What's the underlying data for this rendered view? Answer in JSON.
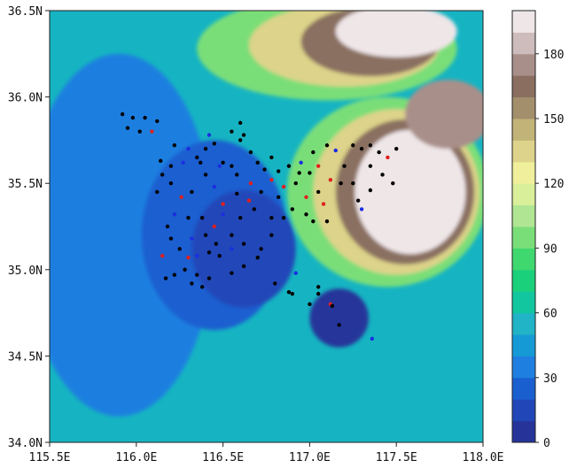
{
  "chart_data": {
    "type": "heatmap",
    "title": "",
    "xlabel": "",
    "ylabel": "",
    "xlim": [
      115.5,
      118.0
    ],
    "ylim": [
      34.0,
      36.5
    ],
    "x_ticks": [
      115.5,
      116.0,
      116.5,
      117.0,
      117.5,
      118.0
    ],
    "x_tick_labels": [
      "115.5E",
      "116.0E",
      "116.5E",
      "117.0E",
      "117.5E",
      "118.0E"
    ],
    "y_ticks": [
      34.0,
      34.5,
      35.0,
      35.5,
      36.0,
      36.5
    ],
    "y_tick_labels": [
      "34.0N",
      "34.5N",
      "35.0N",
      "35.5N",
      "36.0N",
      "36.5N"
    ],
    "colorbar": {
      "min": 0,
      "max": 200,
      "step": 10,
      "ticks": [
        0,
        30,
        60,
        90,
        120,
        150,
        180
      ],
      "tick_labels": [
        "0",
        "30",
        "60",
        "90",
        "120",
        "150",
        "180"
      ],
      "colors": [
        "#26349a",
        "#2046b8",
        "#1a5fd0",
        "#1f7fe0",
        "#159ad6",
        "#21b3c6",
        "#12c79f",
        "#1bd07b",
        "#3fd86f",
        "#7ade78",
        "#b0e693",
        "#d9ef9a",
        "#f0ef9c",
        "#ddd38a",
        "#c2b378",
        "#a38f6c",
        "#8a6f60",
        "#a98f8a",
        "#cdbcbb",
        "#efe6e8"
      ]
    },
    "regions": [
      {
        "x": 115.9,
        "y": 35.2,
        "rx": 0.55,
        "ry": 1.05,
        "level": 30
      },
      {
        "x": 116.45,
        "y": 35.2,
        "rx": 0.42,
        "ry": 0.55,
        "level": 20
      },
      {
        "x": 116.62,
        "y": 35.12,
        "rx": 0.3,
        "ry": 0.34,
        "level": 10
      },
      {
        "x": 117.17,
        "y": 34.72,
        "rx": 0.17,
        "ry": 0.17,
        "level": 0
      },
      {
        "x": 117.1,
        "y": 36.28,
        "rx": 0.75,
        "ry": 0.3,
        "level": 90
      },
      {
        "x": 117.2,
        "y": 36.3,
        "rx": 0.55,
        "ry": 0.24,
        "level": 130
      },
      {
        "x": 117.35,
        "y": 36.32,
        "rx": 0.4,
        "ry": 0.2,
        "level": 160
      },
      {
        "x": 117.5,
        "y": 36.38,
        "rx": 0.35,
        "ry": 0.15,
        "level": 190
      },
      {
        "x": 117.45,
        "y": 35.45,
        "rx": 0.58,
        "ry": 0.55,
        "level": 90
      },
      {
        "x": 117.5,
        "y": 35.45,
        "rx": 0.48,
        "ry": 0.48,
        "level": 130
      },
      {
        "x": 117.55,
        "y": 35.45,
        "rx": 0.4,
        "ry": 0.42,
        "level": 160
      },
      {
        "x": 117.58,
        "y": 35.45,
        "rx": 0.32,
        "ry": 0.36,
        "level": 190
      },
      {
        "x": 117.8,
        "y": 35.9,
        "rx": 0.25,
        "ry": 0.2,
        "level": 170
      }
    ],
    "stations": [
      {
        "x": 115.92,
        "y": 35.9,
        "c": "k"
      },
      {
        "x": 115.98,
        "y": 35.88,
        "c": "k"
      },
      {
        "x": 116.05,
        "y": 35.88,
        "c": "k"
      },
      {
        "x": 115.95,
        "y": 35.82,
        "c": "k"
      },
      {
        "x": 116.02,
        "y": 35.8,
        "c": "k"
      },
      {
        "x": 116.09,
        "y": 35.8,
        "c": "r"
      },
      {
        "x": 116.12,
        "y": 35.86,
        "c": "k"
      },
      {
        "x": 116.22,
        "y": 35.72,
        "c": "k"
      },
      {
        "x": 116.3,
        "y": 35.7,
        "c": "b"
      },
      {
        "x": 116.14,
        "y": 35.63,
        "c": "k"
      },
      {
        "x": 116.2,
        "y": 35.6,
        "c": "k"
      },
      {
        "x": 116.27,
        "y": 35.62,
        "c": "b"
      },
      {
        "x": 116.35,
        "y": 35.65,
        "c": "k"
      },
      {
        "x": 116.4,
        "y": 35.7,
        "c": "k"
      },
      {
        "x": 116.45,
        "y": 35.73,
        "c": "k"
      },
      {
        "x": 116.55,
        "y": 35.8,
        "c": "k"
      },
      {
        "x": 116.6,
        "y": 35.85,
        "c": "k"
      },
      {
        "x": 116.62,
        "y": 35.78,
        "c": "k"
      },
      {
        "x": 116.5,
        "y": 35.62,
        "c": "k"
      },
      {
        "x": 116.58,
        "y": 35.55,
        "c": "k"
      },
      {
        "x": 116.66,
        "y": 35.68,
        "c": "k"
      },
      {
        "x": 116.7,
        "y": 35.62,
        "c": "k"
      },
      {
        "x": 116.78,
        "y": 35.65,
        "c": "k"
      },
      {
        "x": 116.82,
        "y": 35.57,
        "c": "k"
      },
      {
        "x": 116.88,
        "y": 35.6,
        "c": "k"
      },
      {
        "x": 116.95,
        "y": 35.62,
        "c": "b"
      },
      {
        "x": 117.02,
        "y": 35.68,
        "c": "k"
      },
      {
        "x": 117.05,
        "y": 35.6,
        "c": "r"
      },
      {
        "x": 117.1,
        "y": 35.72,
        "c": "k"
      },
      {
        "x": 117.15,
        "y": 35.69,
        "c": "b"
      },
      {
        "x": 117.2,
        "y": 35.6,
        "c": "k"
      },
      {
        "x": 117.25,
        "y": 35.72,
        "c": "k"
      },
      {
        "x": 117.3,
        "y": 35.7,
        "c": "k"
      },
      {
        "x": 117.35,
        "y": 35.72,
        "c": "k"
      },
      {
        "x": 117.4,
        "y": 35.68,
        "c": "k"
      },
      {
        "x": 117.45,
        "y": 35.65,
        "c": "r"
      },
      {
        "x": 117.5,
        "y": 35.7,
        "c": "k"
      },
      {
        "x": 117.42,
        "y": 35.55,
        "c": "k"
      },
      {
        "x": 117.48,
        "y": 35.5,
        "c": "k"
      },
      {
        "x": 117.35,
        "y": 35.46,
        "c": "k"
      },
      {
        "x": 117.28,
        "y": 35.4,
        "c": "k"
      },
      {
        "x": 117.3,
        "y": 35.35,
        "c": "b"
      },
      {
        "x": 117.18,
        "y": 35.5,
        "c": "k"
      },
      {
        "x": 117.12,
        "y": 35.52,
        "c": "r"
      },
      {
        "x": 117.05,
        "y": 35.45,
        "c": "k"
      },
      {
        "x": 116.98,
        "y": 35.42,
        "c": "r"
      },
      {
        "x": 116.92,
        "y": 35.5,
        "c": "k"
      },
      {
        "x": 116.85,
        "y": 35.48,
        "c": "r"
      },
      {
        "x": 116.78,
        "y": 35.52,
        "c": "r"
      },
      {
        "x": 116.72,
        "y": 35.45,
        "c": "k"
      },
      {
        "x": 116.65,
        "y": 35.4,
        "c": "r"
      },
      {
        "x": 116.58,
        "y": 35.44,
        "c": "k"
      },
      {
        "x": 116.5,
        "y": 35.38,
        "c": "r"
      },
      {
        "x": 116.45,
        "y": 35.48,
        "c": "b"
      },
      {
        "x": 116.4,
        "y": 35.55,
        "c": "k"
      },
      {
        "x": 116.32,
        "y": 35.45,
        "c": "k"
      },
      {
        "x": 116.26,
        "y": 35.42,
        "c": "r"
      },
      {
        "x": 116.2,
        "y": 35.5,
        "c": "k"
      },
      {
        "x": 116.15,
        "y": 35.55,
        "c": "k"
      },
      {
        "x": 116.12,
        "y": 35.45,
        "c": "k"
      },
      {
        "x": 116.22,
        "y": 35.32,
        "c": "b"
      },
      {
        "x": 116.3,
        "y": 35.3,
        "c": "k"
      },
      {
        "x": 116.38,
        "y": 35.3,
        "c": "k"
      },
      {
        "x": 116.45,
        "y": 35.25,
        "c": "r"
      },
      {
        "x": 116.5,
        "y": 35.32,
        "c": "b"
      },
      {
        "x": 116.6,
        "y": 35.3,
        "c": "k"
      },
      {
        "x": 116.68,
        "y": 35.35,
        "c": "k"
      },
      {
        "x": 116.78,
        "y": 35.3,
        "c": "k"
      },
      {
        "x": 116.85,
        "y": 35.3,
        "c": "k"
      },
      {
        "x": 116.9,
        "y": 35.35,
        "c": "k"
      },
      {
        "x": 116.98,
        "y": 35.32,
        "c": "k"
      },
      {
        "x": 117.02,
        "y": 35.28,
        "c": "k"
      },
      {
        "x": 117.08,
        "y": 35.38,
        "c": "r"
      },
      {
        "x": 116.78,
        "y": 35.2,
        "c": "k"
      },
      {
        "x": 116.72,
        "y": 35.12,
        "c": "k"
      },
      {
        "x": 116.62,
        "y": 35.15,
        "c": "k"
      },
      {
        "x": 116.55,
        "y": 35.12,
        "c": "b"
      },
      {
        "x": 116.48,
        "y": 35.08,
        "c": "k"
      },
      {
        "x": 116.42,
        "y": 35.1,
        "c": "k"
      },
      {
        "x": 116.35,
        "y": 35.08,
        "c": "b"
      },
      {
        "x": 116.3,
        "y": 35.07,
        "c": "r"
      },
      {
        "x": 116.25,
        "y": 35.12,
        "c": "k"
      },
      {
        "x": 116.15,
        "y": 35.08,
        "c": "r"
      },
      {
        "x": 116.2,
        "y": 35.18,
        "c": "k"
      },
      {
        "x": 116.32,
        "y": 35.18,
        "c": "b"
      },
      {
        "x": 116.4,
        "y": 35.2,
        "c": "k"
      },
      {
        "x": 116.28,
        "y": 35.0,
        "c": "k"
      },
      {
        "x": 116.35,
        "y": 34.97,
        "c": "k"
      },
      {
        "x": 116.42,
        "y": 34.95,
        "c": "k"
      },
      {
        "x": 116.55,
        "y": 34.98,
        "c": "k"
      },
      {
        "x": 116.62,
        "y": 35.02,
        "c": "k"
      },
      {
        "x": 116.7,
        "y": 35.07,
        "c": "k"
      },
      {
        "x": 116.22,
        "y": 34.97,
        "c": "k"
      },
      {
        "x": 116.17,
        "y": 34.95,
        "c": "k"
      },
      {
        "x": 116.38,
        "y": 34.9,
        "c": "k"
      },
      {
        "x": 116.32,
        "y": 34.92,
        "c": "k"
      },
      {
        "x": 116.8,
        "y": 34.92,
        "c": "k"
      },
      {
        "x": 116.88,
        "y": 34.87,
        "c": "k"
      },
      {
        "x": 116.9,
        "y": 34.86,
        "c": "k"
      },
      {
        "x": 116.92,
        "y": 34.98,
        "c": "b"
      },
      {
        "x": 117.0,
        "y": 34.8,
        "c": "k"
      },
      {
        "x": 117.05,
        "y": 34.9,
        "c": "k"
      },
      {
        "x": 117.05,
        "y": 34.86,
        "c": "k"
      },
      {
        "x": 117.12,
        "y": 34.8,
        "c": "r"
      },
      {
        "x": 117.13,
        "y": 34.79,
        "c": "k"
      },
      {
        "x": 117.17,
        "y": 34.68,
        "c": "k"
      },
      {
        "x": 117.36,
        "y": 34.6,
        "c": "b"
      },
      {
        "x": 117.1,
        "y": 35.28,
        "c": "k"
      },
      {
        "x": 117.25,
        "y": 35.5,
        "c": "k"
      },
      {
        "x": 116.55,
        "y": 35.6,
        "c": "k"
      },
      {
        "x": 116.6,
        "y": 35.75,
        "c": "k"
      },
      {
        "x": 116.37,
        "y": 35.62,
        "c": "k"
      },
      {
        "x": 116.42,
        "y": 35.78,
        "c": "b"
      },
      {
        "x": 116.48,
        "y": 35.6,
        "c": "b"
      },
      {
        "x": 116.66,
        "y": 35.5,
        "c": "r"
      },
      {
        "x": 116.74,
        "y": 35.58,
        "c": "k"
      },
      {
        "x": 116.82,
        "y": 35.42,
        "c": "k"
      },
      {
        "x": 116.94,
        "y": 35.56,
        "c": "k"
      },
      {
        "x": 117.0,
        "y": 35.56,
        "c": "k"
      },
      {
        "x": 117.35,
        "y": 35.6,
        "c": "k"
      },
      {
        "x": 116.18,
        "y": 35.25,
        "c": "k"
      },
      {
        "x": 116.55,
        "y": 35.2,
        "c": "k"
      },
      {
        "x": 116.46,
        "y": 35.15,
        "c": "k"
      }
    ]
  }
}
